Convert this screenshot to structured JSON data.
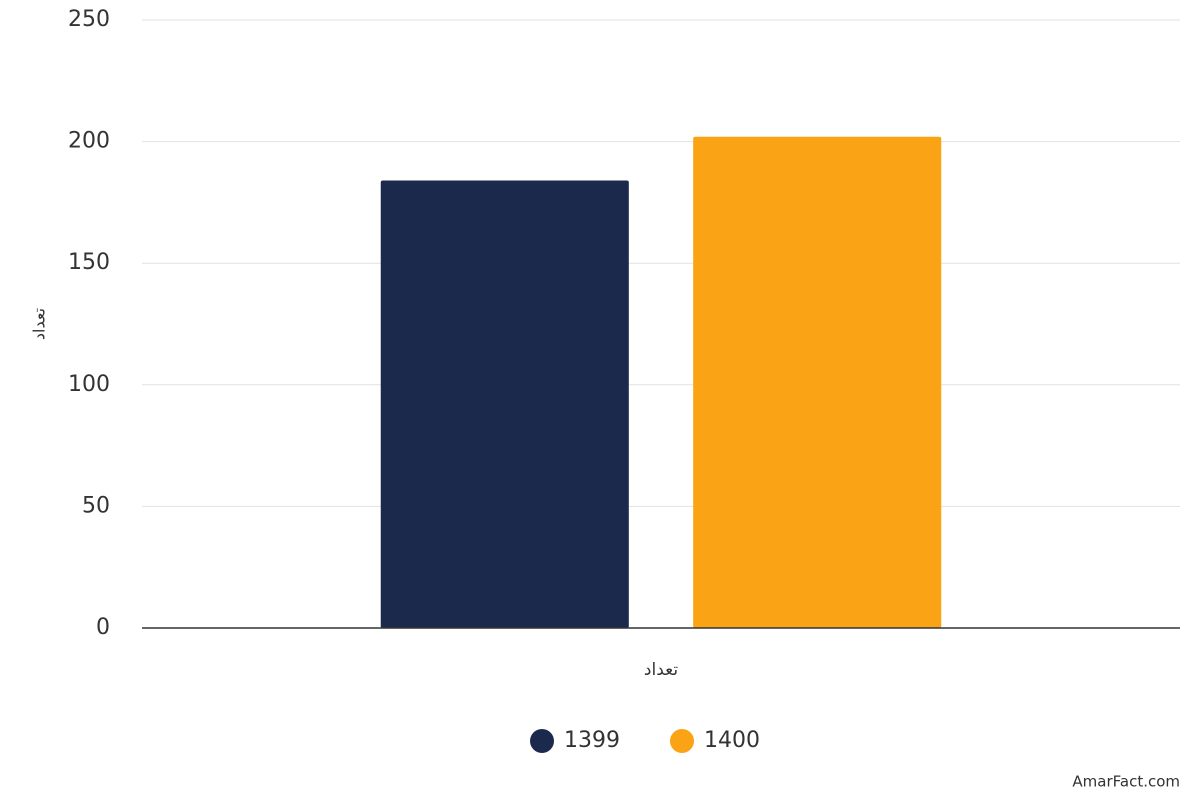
{
  "chart_data": {
    "type": "bar",
    "y_label": "تعداد",
    "categories": [
      "تعداد"
    ],
    "series": [
      {
        "name": "1399",
        "color": "#1b2a4c",
        "values": [
          184
        ]
      },
      {
        "name": "1400",
        "color": "#f9a315",
        "values": [
          202
        ]
      }
    ],
    "ylim": [
      0,
      250
    ],
    "yticks": [
      0,
      50,
      100,
      150,
      200,
      250
    ],
    "grid": true,
    "legend": "bottom",
    "credits": "AmarFact.com"
  }
}
